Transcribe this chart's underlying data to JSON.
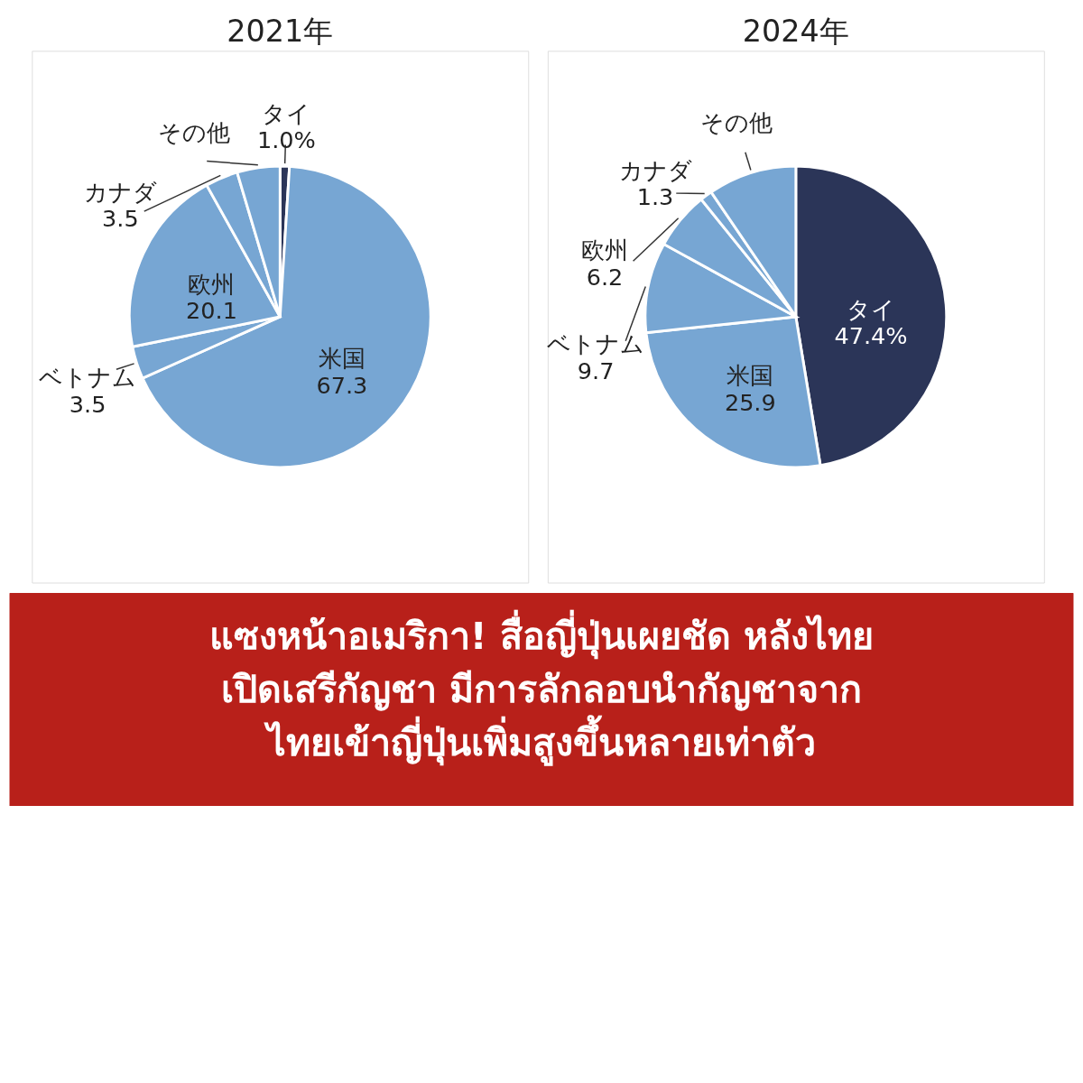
{
  "chart_data": [
    {
      "type": "pie",
      "title": "2021年",
      "categories": [
        "タイ",
        "米国",
        "ベトナム",
        "欧州",
        "カナダ",
        "その他"
      ],
      "values": [
        1.0,
        67.3,
        3.5,
        20.1,
        3.5,
        4.6
      ],
      "value_labels": [
        "1.0%",
        "67.3",
        "3.5",
        "20.1",
        "3.5",
        null
      ],
      "colors": [
        "#2b3558",
        "#77a6d3",
        "#77a6d3",
        "#77a6d3",
        "#77a6d3",
        "#77a6d3"
      ],
      "legend": false,
      "annotations": [
        "แซงหน้าอเมริกา! สื่อญี่ปุ่นเผยชัด หลังไทย",
        "เปิดเสรีกัญชา มีการลักลอบนำกัญชาจาก",
        "ไทยเข้าญี่ปุ่นเพิ่มสูงขึ้นหลายเท่าตัว"
      ]
    },
    {
      "type": "pie",
      "title": "2024年",
      "categories": [
        "タイ",
        "米国",
        "ベトナム",
        "欧州",
        "カナダ",
        "その他"
      ],
      "values": [
        47.4,
        25.9,
        9.7,
        6.2,
        1.3,
        9.5
      ],
      "value_labels": [
        "47.4%",
        "25.9",
        "9.7",
        "6.2",
        "1.3",
        null
      ],
      "colors": [
        "#2b3558",
        "#77a6d3",
        "#77a6d3",
        "#77a6d3",
        "#77a6d3",
        "#77a6d3"
      ],
      "legend": false
    }
  ]
}
